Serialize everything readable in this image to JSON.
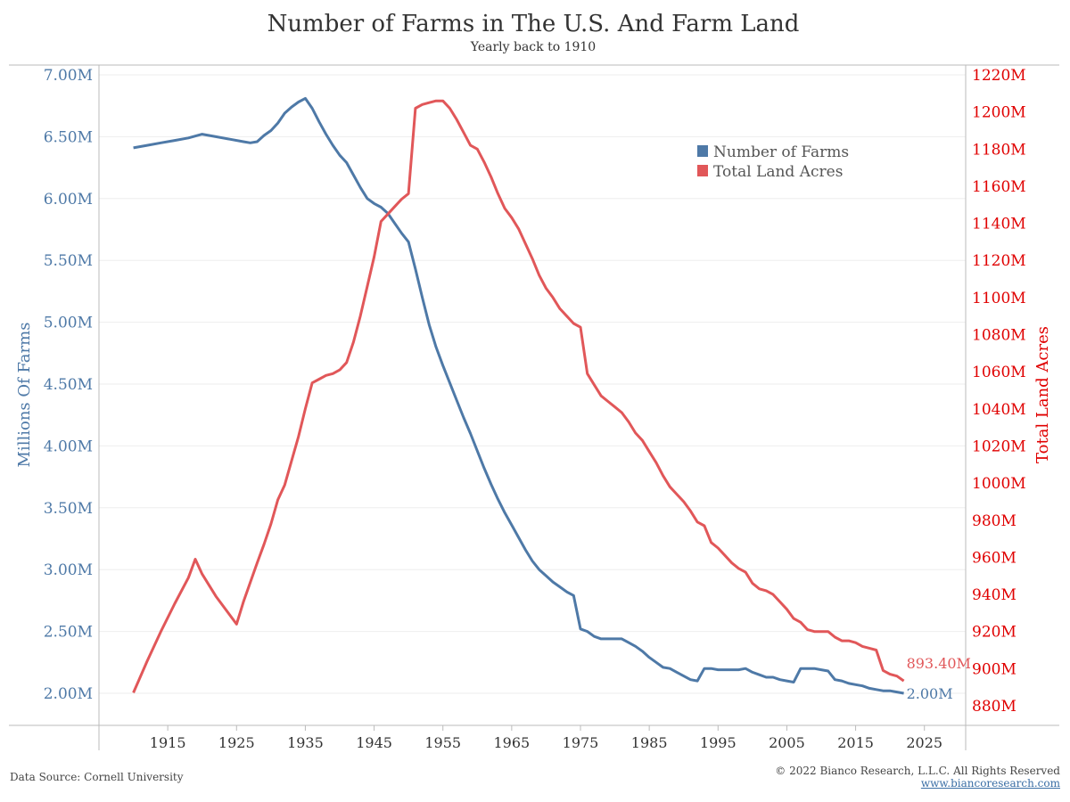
{
  "title": "Number of Farms in The U.S. And Farm Land",
  "subtitle": "Yearly back to 1910",
  "footer": {
    "source": "Data Source: Cornell University",
    "copyright": "© 2022 Bianco Research, L.L.C. All Rights Reserved",
    "link": "www.biancoresearch.com"
  },
  "colors": {
    "farms": "#4e79a7",
    "land": "#e15759",
    "land_axis": "#e00000",
    "grid": "#eeeeee",
    "axis": "#bbbbbb"
  },
  "chart_data": {
    "type": "line",
    "grid": true,
    "legend_position": "top-right",
    "xlabel": "",
    "x_ticks": [
      "1915",
      "1925",
      "1935",
      "1945",
      "1955",
      "1965",
      "1975",
      "1985",
      "1995",
      "2005",
      "2015",
      "2025"
    ],
    "xlim": [
      1905,
      2031
    ],
    "y_left": {
      "label": "Millions Of Farms",
      "lim": [
        1.75,
        7.0
      ],
      "ticks": [
        2.0,
        2.5,
        3.0,
        3.5,
        4.0,
        4.5,
        5.0,
        5.5,
        6.0,
        6.5,
        7.0
      ],
      "tick_labels": [
        "2.00M",
        "2.50M",
        "3.00M",
        "3.50M",
        "4.00M",
        "4.50M",
        "5.00M",
        "5.50M",
        "6.00M",
        "6.50M",
        "7.00M"
      ]
    },
    "y_right": {
      "label": "Total Land Acres",
      "lim": [
        875,
        1220
      ],
      "ticks": [
        880,
        900,
        920,
        940,
        960,
        980,
        1000,
        1020,
        1040,
        1060,
        1080,
        1100,
        1120,
        1140,
        1160,
        1180,
        1200,
        1220
      ],
      "tick_labels": [
        "880M",
        "900M",
        "920M",
        "940M",
        "960M",
        "980M",
        "1000M",
        "1020M",
        "1040M",
        "1060M",
        "1080M",
        "1100M",
        "1120M",
        "1140M",
        "1160M",
        "1180M",
        "1200M",
        "1220M"
      ]
    },
    "series": [
      {
        "name": "Number of Farms",
        "axis": "left",
        "end_label": "2.00M",
        "points": [
          [
            1910,
            6.41
          ],
          [
            1912,
            6.43
          ],
          [
            1914,
            6.45
          ],
          [
            1916,
            6.47
          ],
          [
            1918,
            6.49
          ],
          [
            1920,
            6.52
          ],
          [
            1922,
            6.5
          ],
          [
            1924,
            6.48
          ],
          [
            1926,
            6.46
          ],
          [
            1927,
            6.45
          ],
          [
            1928,
            6.46
          ],
          [
            1929,
            6.51
          ],
          [
            1930,
            6.55
          ],
          [
            1931,
            6.61
          ],
          [
            1932,
            6.69
          ],
          [
            1933,
            6.74
          ],
          [
            1934,
            6.78
          ],
          [
            1935,
            6.81
          ],
          [
            1936,
            6.73
          ],
          [
            1937,
            6.62
          ],
          [
            1938,
            6.52
          ],
          [
            1939,
            6.43
          ],
          [
            1940,
            6.35
          ],
          [
            1941,
            6.29
          ],
          [
            1942,
            6.19
          ],
          [
            1943,
            6.09
          ],
          [
            1944,
            6.0
          ],
          [
            1945,
            5.96
          ],
          [
            1946,
            5.93
          ],
          [
            1947,
            5.88
          ],
          [
            1948,
            5.8
          ],
          [
            1949,
            5.72
          ],
          [
            1950,
            5.65
          ],
          [
            1951,
            5.43
          ],
          [
            1952,
            5.2
          ],
          [
            1953,
            4.98
          ],
          [
            1954,
            4.8
          ],
          [
            1955,
            4.65
          ],
          [
            1956,
            4.51
          ],
          [
            1957,
            4.37
          ],
          [
            1958,
            4.23
          ],
          [
            1959,
            4.1
          ],
          [
            1960,
            3.96
          ],
          [
            1961,
            3.82
          ],
          [
            1962,
            3.69
          ],
          [
            1963,
            3.57
          ],
          [
            1964,
            3.46
          ],
          [
            1965,
            3.36
          ],
          [
            1966,
            3.26
          ],
          [
            1967,
            3.16
          ],
          [
            1968,
            3.07
          ],
          [
            1969,
            3.0
          ],
          [
            1970,
            2.95
          ],
          [
            1971,
            2.9
          ],
          [
            1972,
            2.86
          ],
          [
            1973,
            2.82
          ],
          [
            1974,
            2.79
          ],
          [
            1975,
            2.52
          ],
          [
            1976,
            2.5
          ],
          [
            1977,
            2.46
          ],
          [
            1978,
            2.44
          ],
          [
            1979,
            2.44
          ],
          [
            1980,
            2.44
          ],
          [
            1981,
            2.44
          ],
          [
            1982,
            2.41
          ],
          [
            1983,
            2.38
          ],
          [
            1984,
            2.34
          ],
          [
            1985,
            2.29
          ],
          [
            1986,
            2.25
          ],
          [
            1987,
            2.21
          ],
          [
            1988,
            2.2
          ],
          [
            1989,
            2.17
          ],
          [
            1990,
            2.14
          ],
          [
            1991,
            2.11
          ],
          [
            1992,
            2.1
          ],
          [
            1993,
            2.2
          ],
          [
            1994,
            2.2
          ],
          [
            1995,
            2.19
          ],
          [
            1996,
            2.19
          ],
          [
            1997,
            2.19
          ],
          [
            1998,
            2.19
          ],
          [
            1999,
            2.2
          ],
          [
            2000,
            2.17
          ],
          [
            2001,
            2.15
          ],
          [
            2002,
            2.13
          ],
          [
            2003,
            2.13
          ],
          [
            2004,
            2.11
          ],
          [
            2005,
            2.1
          ],
          [
            2006,
            2.09
          ],
          [
            2007,
            2.2
          ],
          [
            2008,
            2.2
          ],
          [
            2009,
            2.2
          ],
          [
            2010,
            2.19
          ],
          [
            2011,
            2.18
          ],
          [
            2012,
            2.11
          ],
          [
            2013,
            2.1
          ],
          [
            2014,
            2.08
          ],
          [
            2015,
            2.07
          ],
          [
            2016,
            2.06
          ],
          [
            2017,
            2.04
          ],
          [
            2018,
            2.03
          ],
          [
            2019,
            2.02
          ],
          [
            2020,
            2.02
          ],
          [
            2021,
            2.01
          ],
          [
            2022,
            2.0
          ]
        ]
      },
      {
        "name": "Total Land Acres",
        "axis": "right",
        "end_label": "893.40M",
        "points": [
          [
            1910,
            887
          ],
          [
            1912,
            904
          ],
          [
            1914,
            920
          ],
          [
            1916,
            935
          ],
          [
            1918,
            949
          ],
          [
            1919,
            959
          ],
          [
            1920,
            951
          ],
          [
            1922,
            939
          ],
          [
            1924,
            929
          ],
          [
            1925,
            924
          ],
          [
            1926,
            936
          ],
          [
            1928,
            957
          ],
          [
            1929,
            967
          ],
          [
            1930,
            978
          ],
          [
            1931,
            991
          ],
          [
            1932,
            999
          ],
          [
            1933,
            1012
          ],
          [
            1934,
            1025
          ],
          [
            1935,
            1040
          ],
          [
            1936,
            1054
          ],
          [
            1937,
            1056
          ],
          [
            1938,
            1058
          ],
          [
            1939,
            1059
          ],
          [
            1940,
            1061
          ],
          [
            1941,
            1065
          ],
          [
            1942,
            1076
          ],
          [
            1943,
            1090
          ],
          [
            1944,
            1106
          ],
          [
            1945,
            1122
          ],
          [
            1946,
            1141
          ],
          [
            1947,
            1145
          ],
          [
            1948,
            1149
          ],
          [
            1949,
            1153
          ],
          [
            1950,
            1156
          ],
          [
            1951,
            1202
          ],
          [
            1952,
            1204
          ],
          [
            1953,
            1205
          ],
          [
            1954,
            1206
          ],
          [
            1955,
            1206
          ],
          [
            1956,
            1202
          ],
          [
            1957,
            1196
          ],
          [
            1958,
            1189
          ],
          [
            1959,
            1182
          ],
          [
            1960,
            1180
          ],
          [
            1961,
            1173
          ],
          [
            1962,
            1165
          ],
          [
            1963,
            1156
          ],
          [
            1964,
            1148
          ],
          [
            1965,
            1143
          ],
          [
            1966,
            1137
          ],
          [
            1967,
            1129
          ],
          [
            1968,
            1121
          ],
          [
            1969,
            1112
          ],
          [
            1970,
            1105
          ],
          [
            1971,
            1100
          ],
          [
            1972,
            1094
          ],
          [
            1973,
            1090
          ],
          [
            1974,
            1086
          ],
          [
            1975,
            1084
          ],
          [
            1976,
            1059
          ],
          [
            1977,
            1053
          ],
          [
            1978,
            1047
          ],
          [
            1979,
            1044
          ],
          [
            1980,
            1041
          ],
          [
            1981,
            1038
          ],
          [
            1982,
            1033
          ],
          [
            1983,
            1027
          ],
          [
            1984,
            1023
          ],
          [
            1985,
            1017
          ],
          [
            1986,
            1011
          ],
          [
            1987,
            1004
          ],
          [
            1988,
            998
          ],
          [
            1989,
            994
          ],
          [
            1990,
            990
          ],
          [
            1991,
            985
          ],
          [
            1992,
            979
          ],
          [
            1993,
            977
          ],
          [
            1994,
            968
          ],
          [
            1995,
            965
          ],
          [
            1996,
            961
          ],
          [
            1997,
            957
          ],
          [
            1998,
            954
          ],
          [
            1999,
            952
          ],
          [
            2000,
            946
          ],
          [
            2001,
            943
          ],
          [
            2002,
            942
          ],
          [
            2003,
            940
          ],
          [
            2004,
            936
          ],
          [
            2005,
            932
          ],
          [
            2006,
            927
          ],
          [
            2007,
            925
          ],
          [
            2008,
            921
          ],
          [
            2009,
            920
          ],
          [
            2010,
            920
          ],
          [
            2011,
            920
          ],
          [
            2012,
            917
          ],
          [
            2013,
            915
          ],
          [
            2014,
            915
          ],
          [
            2015,
            914
          ],
          [
            2016,
            912
          ],
          [
            2017,
            911
          ],
          [
            2018,
            910
          ],
          [
            2019,
            899
          ],
          [
            2020,
            897
          ],
          [
            2021,
            896
          ],
          [
            2022,
            893.4
          ]
        ]
      }
    ]
  }
}
